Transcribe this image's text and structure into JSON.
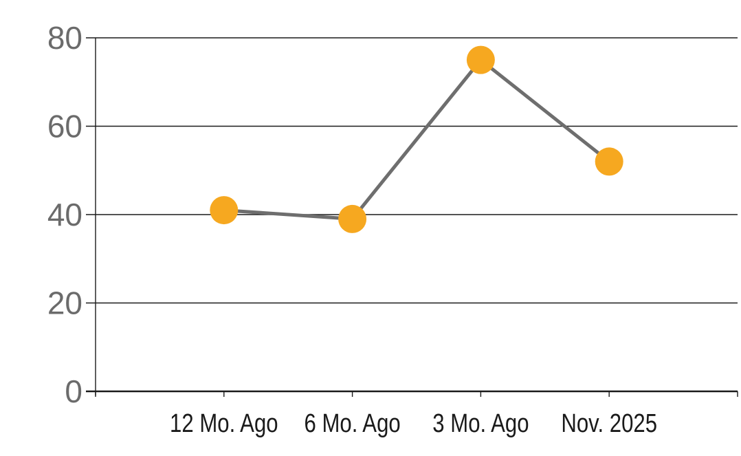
{
  "chart_data": {
    "type": "line",
    "title": "",
    "xlabel": "",
    "ylabel": "",
    "categories": [
      "12 Mo. Ago",
      "6 Mo. Ago",
      "3 Mo. Ago",
      "Nov. 2025"
    ],
    "series": [
      {
        "name": "series-1",
        "values": [
          41,
          39,
          75,
          52
        ]
      }
    ],
    "ylim": [
      0,
      80
    ],
    "yticks": [
      0,
      20,
      40,
      60,
      80
    ],
    "grid": "horizontal gridlines at each y tick, ticks protrude left of y-axis and below x-axis",
    "legend": "none",
    "marker_style": "large filled circle",
    "colors": {
      "marker_fill": "#F6A820",
      "line_stroke": "#6E6E6E",
      "gridline": "#1A1A1A",
      "axis": "#1A1A1A",
      "y_tick_label_color": "#6B6B6B",
      "x_tick_label_color": "#1A1A1A",
      "background": "#FFFFFF"
    }
  }
}
